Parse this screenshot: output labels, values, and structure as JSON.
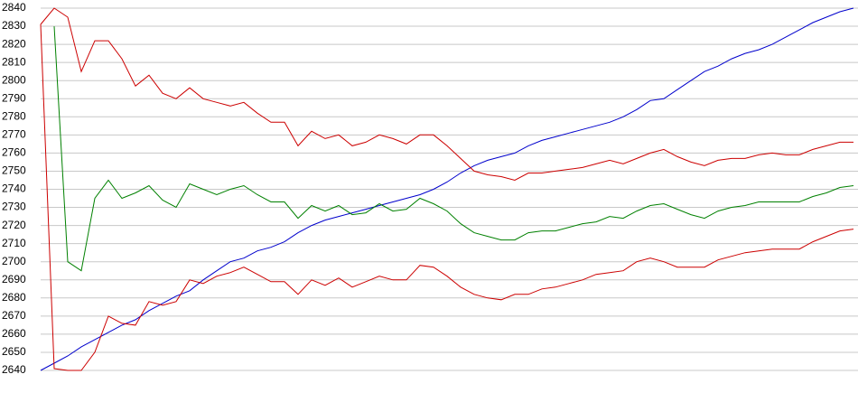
{
  "chart_data": {
    "type": "line",
    "ylim": [
      2640,
      2840
    ],
    "yticks": [
      2640,
      2650,
      2660,
      2670,
      2680,
      2690,
      2700,
      2710,
      2720,
      2730,
      2740,
      2750,
      2760,
      2770,
      2780,
      2790,
      2800,
      2810,
      2820,
      2830,
      2840
    ],
    "grid": true,
    "series": [
      {
        "color": "#0000cc",
        "values": [
          2640,
          2644,
          2648,
          2653,
          2657,
          2661,
          2665,
          2668,
          2673,
          2677,
          2681,
          2684,
          2690,
          2695,
          2700,
          2702,
          2706,
          2708,
          2711,
          2716,
          2720,
          2723,
          2725,
          2727,
          2729,
          2731,
          2733,
          2735,
          2737,
          2740,
          2744,
          2749,
          2753,
          2756,
          2758,
          2760,
          2764,
          2767,
          2769,
          2771,
          2773,
          2775,
          2777,
          2780,
          2784,
          2789,
          2790,
          2795,
          2800,
          2805,
          2808,
          2812,
          2815,
          2817,
          2820,
          2824,
          2828,
          2832,
          2835,
          2838,
          2840
        ]
      },
      {
        "color": "#cc0000",
        "values": [
          2831,
          2840,
          2835,
          2805,
          2822,
          2822,
          2812,
          2797,
          2803,
          2793,
          2790,
          2796,
          2790,
          2788,
          2786,
          2788,
          2782,
          2777,
          2777,
          2764,
          2772,
          2768,
          2770,
          2764,
          2766,
          2770,
          2768,
          2765,
          2770,
          2770,
          2764,
          2757,
          2750,
          2748,
          2747,
          2745,
          2749,
          2749,
          2750,
          2751,
          2752,
          2754,
          2756,
          2754,
          2757,
          2760,
          2762,
          2758,
          2755,
          2753,
          2756,
          2757,
          2757,
          2759,
          2760,
          2759,
          2759,
          2762,
          2764,
          2766,
          2766
        ]
      },
      {
        "color": "#008000",
        "values": [
          null,
          2830,
          2700,
          2695,
          2735,
          2745,
          2735,
          2738,
          2742,
          2734,
          2730,
          2743,
          2740,
          2737,
          2740,
          2742,
          2737,
          2733,
          2733,
          2724,
          2731,
          2728,
          2731,
          2726,
          2727,
          2732,
          2728,
          2729,
          2735,
          2732,
          2728,
          2721,
          2716,
          2714,
          2712,
          2712,
          2716,
          2717,
          2717,
          2719,
          2721,
          2722,
          2725,
          2724,
          2728,
          2731,
          2732,
          2729,
          2726,
          2724,
          2728,
          2730,
          2731,
          2733,
          2733,
          2733,
          2733,
          2736,
          2738,
          2741,
          2742
        ]
      },
      {
        "color": "#cc0000",
        "values": [
          2831,
          2641,
          2640,
          2640,
          2650,
          2670,
          2666,
          2665,
          2678,
          2676,
          2678,
          2690,
          2688,
          2692,
          2694,
          2697,
          2693,
          2689,
          2689,
          2682,
          2690,
          2687,
          2691,
          2686,
          2689,
          2692,
          2690,
          2690,
          2698,
          2697,
          2692,
          2686,
          2682,
          2680,
          2679,
          2682,
          2682,
          2685,
          2686,
          2688,
          2690,
          2693,
          2694,
          2695,
          2700,
          2702,
          2700,
          2697,
          2697,
          2697,
          2701,
          2703,
          2705,
          2706,
          2707,
          2707,
          2707,
          2711,
          2714,
          2717,
          2718
        ]
      }
    ]
  }
}
